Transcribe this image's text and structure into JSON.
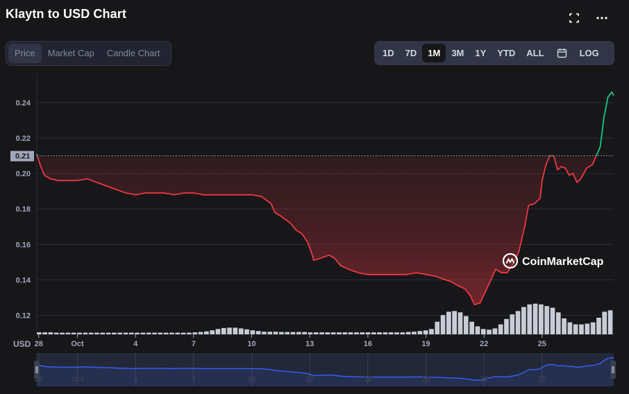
{
  "header": {
    "title": "Klaytn to USD Chart",
    "fullscreen_icon": "fullscreen-icon",
    "more_icon": "more-dots-icon"
  },
  "tabs": [
    {
      "label": "Price",
      "active": true
    },
    {
      "label": "Market Cap",
      "active": false
    },
    {
      "label": "Candle Chart",
      "active": false
    }
  ],
  "ranges": {
    "items": [
      {
        "label": "1D",
        "active": false
      },
      {
        "label": "7D",
        "active": false
      },
      {
        "label": "1M",
        "active": true
      },
      {
        "label": "3M",
        "active": false
      },
      {
        "label": "1Y",
        "active": false
      },
      {
        "label": "YTD",
        "active": false
      },
      {
        "label": "ALL",
        "active": false
      }
    ],
    "calendar_icon": "calendar-icon",
    "log_label": "LOG"
  },
  "watermark": "CoinMarketCap",
  "currency_label": "USD",
  "colors": {
    "up": "#16c784",
    "down": "#ea3943",
    "navigator_line": "#3861fb",
    "background": "#17171a"
  },
  "chart_data": {
    "type": "line",
    "title": "Klaytn to USD Chart",
    "ylabel": "USD",
    "y_ticks": [
      "0.12",
      "0.14",
      "0.16",
      "0.18",
      "0.20",
      "0.22",
      "0.24"
    ],
    "ylim": [
      0.112,
      0.256
    ],
    "x_ticks": [
      "28",
      "Oct",
      "4",
      "7",
      "10",
      "13",
      "16",
      "19",
      "22",
      "25"
    ],
    "x_tick_positions": [
      28,
      30,
      33,
      36,
      39,
      42,
      45,
      48,
      51,
      54
    ],
    "xlim": [
      27.9,
      57.7
    ],
    "reference_value": 0.21,
    "reference_label": "0.21",
    "grid": true,
    "series": [
      {
        "x": [
          27.9,
          28.1,
          28.3,
          28.6,
          29.0,
          29.5,
          30.0,
          30.5,
          31.0,
          31.5,
          32.0,
          32.5,
          33.0,
          33.5,
          34.0,
          34.5,
          35.0,
          35.5,
          36.0,
          36.5,
          37.0,
          37.5,
          38.0,
          38.5,
          39.0,
          39.5,
          40.0,
          40.2,
          40.5,
          41.0,
          41.3,
          41.6,
          41.9,
          42.1,
          42.2,
          42.5,
          43.0,
          43.3,
          43.6,
          44.0,
          44.5,
          45.0,
          45.5,
          46.0,
          46.5,
          47.0,
          47.5,
          48.0,
          48.5,
          49.0,
          49.3,
          49.6,
          50.0,
          50.3,
          50.5,
          50.8,
          51.1,
          51.4,
          51.6,
          51.9,
          52.2,
          52.5,
          52.8,
          53.1,
          53.3,
          53.6,
          53.9,
          54.0,
          54.2,
          54.4,
          54.6,
          54.8,
          55.0,
          55.2,
          55.4,
          55.6,
          55.8,
          56.0,
          56.3,
          56.6,
          56.8,
          57.0,
          57.2,
          57.4,
          57.6,
          57.7
        ],
        "y": [
          0.211,
          0.204,
          0.199,
          0.197,
          0.196,
          0.196,
          0.196,
          0.197,
          0.195,
          0.193,
          0.191,
          0.189,
          0.188,
          0.189,
          0.189,
          0.189,
          0.188,
          0.189,
          0.189,
          0.188,
          0.188,
          0.188,
          0.188,
          0.188,
          0.188,
          0.187,
          0.183,
          0.178,
          0.176,
          0.172,
          0.168,
          0.166,
          0.161,
          0.155,
          0.151,
          0.152,
          0.154,
          0.152,
          0.148,
          0.146,
          0.144,
          0.143,
          0.143,
          0.143,
          0.143,
          0.143,
          0.144,
          0.143,
          0.142,
          0.14,
          0.139,
          0.137,
          0.135,
          0.131,
          0.126,
          0.127,
          0.134,
          0.141,
          0.146,
          0.144,
          0.144,
          0.149,
          0.156,
          0.17,
          0.182,
          0.183,
          0.186,
          0.196,
          0.205,
          0.21,
          0.21,
          0.202,
          0.204,
          0.203,
          0.199,
          0.2,
          0.195,
          0.197,
          0.203,
          0.205,
          0.21,
          0.215,
          0.232,
          0.243,
          0.246,
          0.244
        ]
      }
    ],
    "volume_profile": [
      0.06,
      0.06,
      0.06,
      0.05,
      0.05,
      0.05,
      0.05,
      0.05,
      0.05,
      0.05,
      0.05,
      0.05,
      0.05,
      0.05,
      0.05,
      0.05,
      0.05,
      0.05,
      0.05,
      0.05,
      0.05,
      0.05,
      0.05,
      0.05,
      0.05,
      0.05,
      0.05,
      0.06,
      0.07,
      0.09,
      0.12,
      0.16,
      0.19,
      0.2,
      0.2,
      0.18,
      0.15,
      0.12,
      0.1,
      0.08,
      0.08,
      0.08,
      0.07,
      0.07,
      0.07,
      0.07,
      0.07,
      0.06,
      0.06,
      0.06,
      0.06,
      0.06,
      0.06,
      0.06,
      0.06,
      0.06,
      0.06,
      0.06,
      0.06,
      0.06,
      0.06,
      0.06,
      0.06,
      0.06,
      0.07,
      0.08,
      0.1,
      0.12,
      0.16,
      0.38,
      0.58,
      0.68,
      0.7,
      0.66,
      0.55,
      0.38,
      0.24,
      0.16,
      0.14,
      0.18,
      0.3,
      0.46,
      0.6,
      0.7,
      0.82,
      0.9,
      0.92,
      0.9,
      0.85,
      0.8,
      0.66,
      0.48,
      0.36,
      0.3,
      0.3,
      0.32,
      0.36,
      0.5,
      0.68,
      0.72
    ]
  }
}
